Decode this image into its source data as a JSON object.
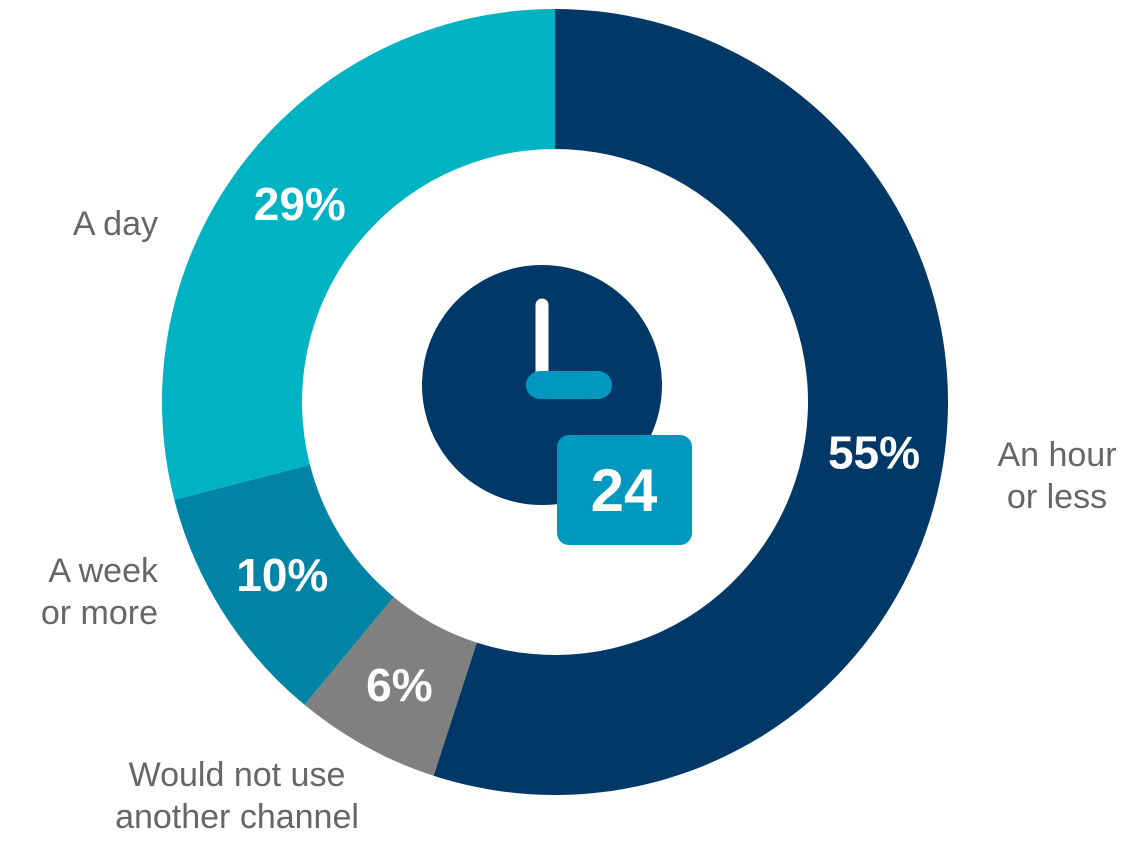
{
  "chart_data": {
    "type": "pie",
    "title": "",
    "slices": [
      {
        "label": "An hour or less",
        "label_lines": [
          "An hour",
          "or less"
        ],
        "value": 55,
        "value_label": "55%",
        "color": "#003867"
      },
      {
        "label": "Would not use another channel",
        "label_lines": [
          "Would not use",
          "another channel"
        ],
        "value": 6,
        "value_label": "6%",
        "color": "#808080"
      },
      {
        "label": "A week or more",
        "label_lines": [
          "A week",
          "or more"
        ],
        "value": 10,
        "value_label": "10%",
        "color": "#0084A6"
      },
      {
        "label": "A day",
        "label_lines": [
          "A day"
        ],
        "value": 29,
        "value_label": "29%",
        "color": "#00B3C2"
      }
    ],
    "donut": true,
    "legend": "none"
  },
  "center_icon": {
    "name": "clock-24-icon",
    "text": "24",
    "face_color": "#003867",
    "accent_color": "#0098BE"
  }
}
